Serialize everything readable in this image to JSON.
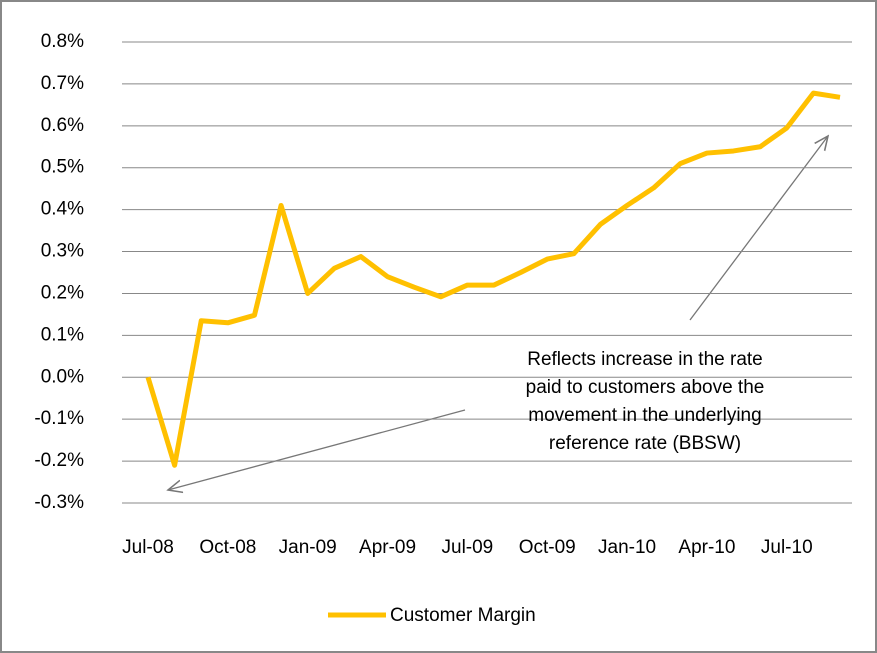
{
  "chart_data": {
    "type": "line",
    "categories": [
      "Jul-08",
      null,
      null,
      "Oct-08",
      null,
      null,
      "Jan-09",
      null,
      null,
      "Apr-09",
      null,
      null,
      "Jul-09",
      null,
      null,
      "Oct-09",
      null,
      null,
      "Jan-10",
      null,
      null,
      "Apr-10",
      null,
      null,
      "Jul-10",
      null,
      null
    ],
    "series": [
      {
        "name": "Customer Margin",
        "color": "#ffc000",
        "values": [
          0.0,
          -0.21,
          0.135,
          0.13,
          0.148,
          0.41,
          0.2,
          0.26,
          0.288,
          0.24,
          0.215,
          0.192,
          0.22,
          0.22,
          0.25,
          0.282,
          0.295,
          0.365,
          0.41,
          0.452,
          0.51,
          0.535,
          0.54,
          0.55,
          0.595,
          0.678,
          0.668
        ]
      }
    ],
    "ylim": [
      -0.3,
      0.8
    ],
    "yticks": [
      {
        "value": -0.3,
        "label": "-0.3%"
      },
      {
        "value": -0.2,
        "label": "-0.2%"
      },
      {
        "value": -0.1,
        "label": "-0.1%"
      },
      {
        "value": 0.0,
        "label": "0.0%"
      },
      {
        "value": 0.1,
        "label": "0.1%"
      },
      {
        "value": 0.2,
        "label": "0.2%"
      },
      {
        "value": 0.3,
        "label": "0.3%"
      },
      {
        "value": 0.4,
        "label": "0.4%"
      },
      {
        "value": 0.5,
        "label": "0.5%"
      },
      {
        "value": 0.6,
        "label": "0.6%"
      },
      {
        "value": 0.7,
        "label": "0.7%"
      },
      {
        "value": 0.8,
        "label": "0.8%"
      }
    ],
    "grid": true,
    "legend": "bottom",
    "annotation": [
      "Reflects increase in the rate",
      "paid to customers above the",
      "movement in the underlying",
      "reference rate (BBSW)"
    ]
  }
}
